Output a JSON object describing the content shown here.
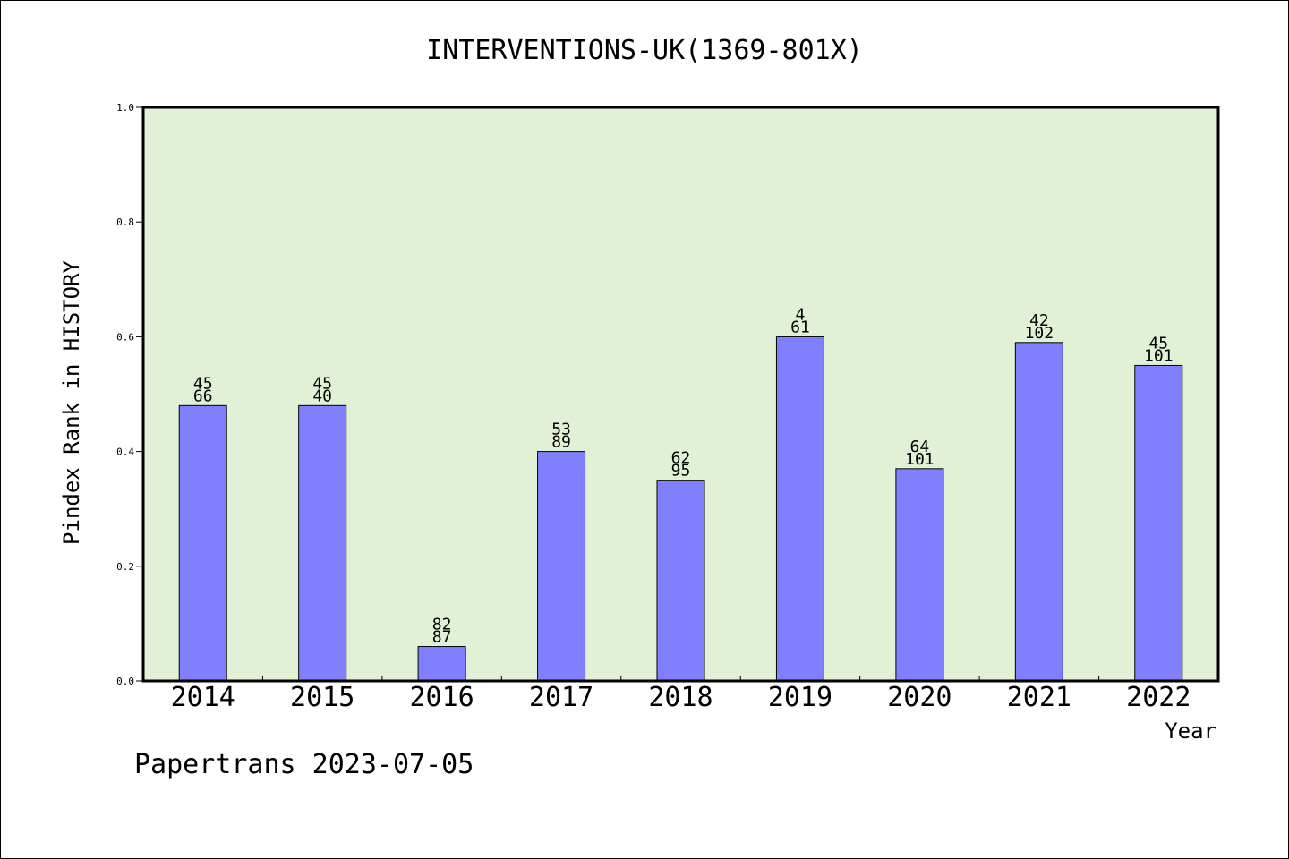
{
  "chart_data": {
    "type": "bar",
    "title": "INTERVENTIONS-UK(1369-801X)",
    "xlabel": "Year",
    "ylabel": "Pindex Rank in HISTORY",
    "footer": "Papertrans 2023-07-05",
    "categories": [
      "2014",
      "2015",
      "2016",
      "2017",
      "2018",
      "2019",
      "2020",
      "2021",
      "2022"
    ],
    "values": [
      0.48,
      0.48,
      0.06,
      0.4,
      0.35,
      0.6,
      0.37,
      0.59,
      0.55
    ],
    "label_top": [
      "45",
      "45",
      "82",
      "53",
      "62",
      "4",
      "64",
      "42",
      "45"
    ],
    "label_bottom": [
      "66",
      "40",
      "87",
      "89",
      "95",
      "61",
      "101",
      "102",
      "101"
    ],
    "yticks": [
      "0.0",
      "0.2",
      "0.4",
      "0.6",
      "0.8",
      "1.0"
    ],
    "ylim": [
      0,
      1.0
    ],
    "grid": false,
    "colors": {
      "plot_background": "#e2f0d6",
      "bar_fill": "#8080ff",
      "bar_stroke": "#000000"
    }
  }
}
